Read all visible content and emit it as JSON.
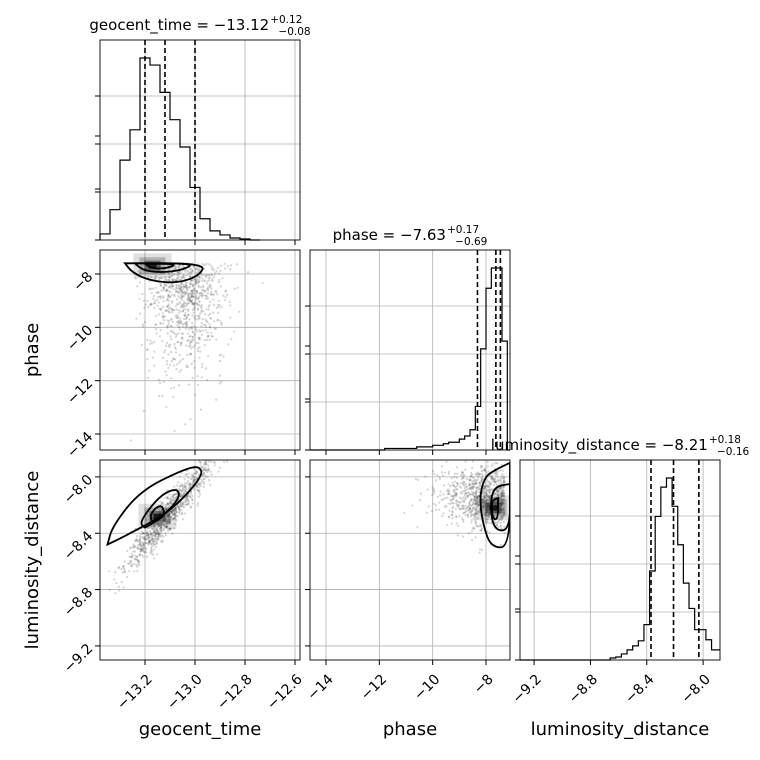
{
  "chart_data": {
    "type": "corner",
    "parameters": [
      "geocent_time",
      "phase",
      "luminosity_distance"
    ],
    "axes": {
      "geocent_time": {
        "label": "geocent_time",
        "range": [
          -13.38,
          -12.58
        ],
        "ticks": [
          -13.2,
          -13.0,
          -12.8,
          -12.6
        ],
        "tick_labels": [
          "−13.2",
          "−13.0",
          "−12.8",
          "−12.6"
        ]
      },
      "phase": {
        "label": "phase",
        "range": [
          -14.6,
          -7.1
        ],
        "ticks": [
          -14,
          -12,
          -10,
          -8
        ],
        "tick_labels": [
          "−14",
          "−12",
          "−10",
          "−8"
        ]
      },
      "luminosity_distance": {
        "label": "luminosity_distance",
        "range": [
          -9.3,
          -7.88
        ],
        "ticks": [
          -9.2,
          -8.8,
          -8.4,
          -8.0
        ],
        "tick_labels": [
          "−9.2",
          "−8.8",
          "−8.4",
          "−8.0"
        ]
      }
    },
    "titles": [
      {
        "param": "geocent_time",
        "text": "geocent_time = −13.12",
        "plus": "+0.12",
        "minus": "−0.08",
        "quantiles": [
          -13.2,
          -13.12,
          -13.0
        ]
      },
      {
        "param": "phase",
        "text": "phase = −7.63",
        "plus": "+0.17",
        "minus": "−0.69",
        "quantiles": [
          -8.32,
          -7.63,
          -7.46
        ]
      },
      {
        "param": "luminosity_distance",
        "text": "luminosity_distance = −8.21",
        "plus": "+0.18",
        "minus": "−0.16",
        "quantiles": [
          -8.37,
          -8.21,
          -8.03
        ]
      }
    ],
    "histograms": {
      "geocent_time": {
        "bin_edges": [
          -13.38,
          -13.34,
          -13.3,
          -13.26,
          -13.22,
          -13.18,
          -13.14,
          -13.1,
          -13.06,
          -13.02,
          -12.98,
          -12.94,
          -12.9,
          -12.86,
          -12.82,
          -12.78,
          -12.74
        ],
        "counts": [
          6,
          30,
          79,
          109,
          180,
          173,
          146,
          119,
          92,
          52,
          21,
          9,
          5,
          2,
          1,
          0
        ]
      },
      "phase": {
        "bin_edges": [
          -14.6,
          -14.4,
          -14.2,
          -14.0,
          -13.8,
          -13.6,
          -13.4,
          -13.2,
          -13.0,
          -12.8,
          -12.6,
          -12.4,
          -12.2,
          -12.0,
          -11.8,
          -11.6,
          -11.4,
          -11.2,
          -11.0,
          -10.8,
          -10.6,
          -10.4,
          -10.2,
          -10.0,
          -9.8,
          -9.6,
          -9.4,
          -9.2,
          -9.0,
          -8.8,
          -8.6,
          -8.4,
          -8.2,
          -8.0,
          -7.8,
          -7.6,
          -7.4,
          -7.2,
          -7.0
        ],
        "counts": [
          0,
          0,
          0,
          0,
          0,
          0,
          0,
          0,
          0,
          0,
          0,
          0,
          0,
          0,
          1,
          1,
          1,
          1,
          1,
          1,
          2,
          2,
          2,
          3,
          3,
          4,
          5,
          5,
          7,
          9,
          13,
          28,
          65,
          104,
          117,
          117,
          70,
          0
        ]
      },
      "luminosity_distance": {
        "bin_edges": [
          -9.3,
          -9.26,
          -9.22,
          -9.18,
          -9.14,
          -9.1,
          -9.06,
          -9.02,
          -8.98,
          -8.94,
          -8.9,
          -8.86,
          -8.82,
          -8.78,
          -8.74,
          -8.7,
          -8.66,
          -8.62,
          -8.58,
          -8.54,
          -8.5,
          -8.46,
          -8.42,
          -8.38,
          -8.34,
          -8.3,
          -8.26,
          -8.22,
          -8.18,
          -8.14,
          -8.1,
          -8.06,
          -8.02,
          -7.98,
          -7.94,
          -7.9,
          -7.86
        ],
        "counts": [
          0,
          0,
          0,
          0,
          0,
          0,
          0,
          0,
          0,
          0,
          0,
          0,
          0,
          0,
          0,
          0,
          2,
          3,
          6,
          10,
          14,
          19,
          35,
          88,
          142,
          171,
          180,
          152,
          114,
          76,
          51,
          30,
          30,
          20,
          10,
          10
        ]
      }
    },
    "joint": [
      {
        "x": "geocent_time",
        "y": "phase",
        "peak": [
          -13.17,
          -7.7
        ],
        "scatter_center": [
          -13.04,
          -9.3
        ],
        "levels": [
          [
            [
              -13.28,
              -7.6
            ],
            [
              -13.25,
              -7.95
            ],
            [
              -13.18,
              -8.25
            ],
            [
              -13.07,
              -8.35
            ],
            [
              -12.98,
              -8.05
            ],
            [
              -12.96,
              -7.6
            ]
          ],
          [
            [
              -13.24,
              -7.6
            ],
            [
              -13.21,
              -7.85
            ],
            [
              -13.14,
              -7.95
            ],
            [
              -13.05,
              -7.85
            ],
            [
              -13.0,
              -7.6
            ]
          ],
          [
            [
              -13.2,
              -7.62
            ],
            [
              -13.17,
              -7.8
            ],
            [
              -13.11,
              -7.78
            ],
            [
              -13.07,
              -7.62
            ]
          ]
        ]
      },
      {
        "x": "geocent_time",
        "y": "luminosity_distance",
        "peak": [
          -13.15,
          -8.28
        ],
        "scatter_center": [
          -13.1,
          -8.25
        ],
        "levels": [
          [
            [
              -13.35,
              -8.48
            ],
            [
              -13.28,
              -8.42
            ],
            [
              -13.1,
              -8.25
            ],
            [
              -12.97,
              -8.0
            ],
            [
              -12.98,
              -7.92
            ],
            [
              -13.05,
              -7.95
            ],
            [
              -13.22,
              -8.1
            ],
            [
              -13.33,
              -8.35
            ]
          ],
          [
            [
              -13.2,
              -8.36
            ],
            [
              -13.14,
              -8.3
            ],
            [
              -13.06,
              -8.15
            ],
            [
              -13.07,
              -8.08
            ],
            [
              -13.13,
              -8.12
            ],
            [
              -13.19,
              -8.24
            ],
            [
              -13.22,
              -8.33
            ]
          ],
          [
            [
              -13.17,
              -8.32
            ],
            [
              -13.12,
              -8.28
            ],
            [
              -13.13,
              -8.2
            ],
            [
              -13.16,
              -8.22
            ],
            [
              -13.18,
              -8.28
            ]
          ]
        ]
      },
      {
        "x": "phase",
        "y": "luminosity_distance",
        "peak": [
          -7.72,
          -8.22
        ],
        "scatter_center": [
          -8.2,
          -8.15
        ],
        "levels": [
          [
            [
              -7.1,
              -7.9
            ],
            [
              -7.65,
              -7.95
            ],
            [
              -8.05,
              -8.0
            ],
            [
              -8.25,
              -8.15
            ],
            [
              -8.1,
              -8.35
            ],
            [
              -7.8,
              -8.5
            ],
            [
              -7.1,
              -8.5
            ]
          ],
          [
            [
              -7.1,
              -8.05
            ],
            [
              -7.7,
              -8.07
            ],
            [
              -7.85,
              -8.2
            ],
            [
              -7.7,
              -8.38
            ],
            [
              -7.1,
              -8.38
            ]
          ],
          [
            [
              -7.55,
              -8.15
            ],
            [
              -7.8,
              -8.17
            ],
            [
              -7.75,
              -8.3
            ],
            [
              -7.55,
              -8.3
            ]
          ]
        ]
      }
    ],
    "grid": true
  }
}
